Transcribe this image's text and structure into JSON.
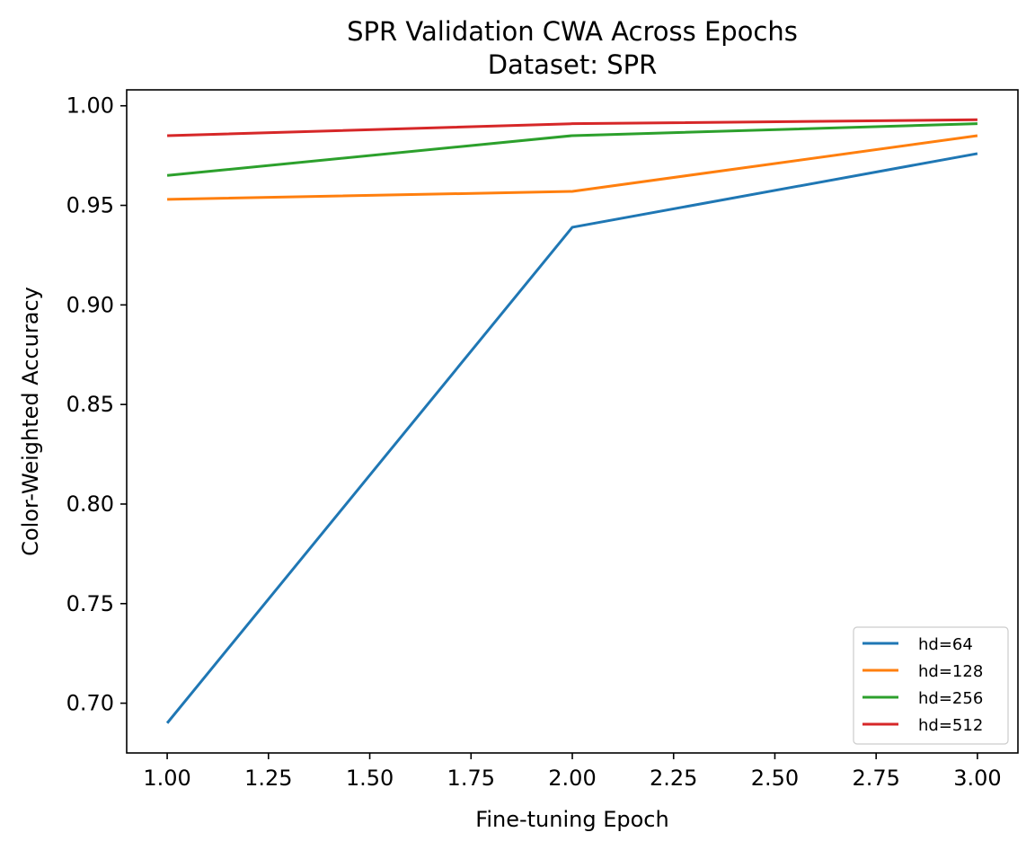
{
  "chart_data": {
    "type": "line",
    "title": "SPR Validation CWA Across Epochs",
    "subtitle": "Dataset: SPR",
    "xlabel": "Fine-tuning Epoch",
    "ylabel": "Color-Weighted Accuracy",
    "x": [
      1,
      2,
      3
    ],
    "xlim": [
      0.9,
      3.1
    ],
    "ylim": [
      0.675,
      1.008
    ],
    "xticks": [
      1.0,
      1.25,
      1.5,
      1.75,
      2.0,
      2.25,
      2.5,
      2.75,
      3.0
    ],
    "xtick_labels": [
      "1.00",
      "1.25",
      "1.50",
      "1.75",
      "2.00",
      "2.25",
      "2.50",
      "2.75",
      "3.00"
    ],
    "yticks": [
      0.7,
      0.75,
      0.8,
      0.85,
      0.9,
      0.95,
      1.0
    ],
    "ytick_labels": [
      "0.70",
      "0.75",
      "0.80",
      "0.85",
      "0.90",
      "0.95",
      "1.00"
    ],
    "grid": false,
    "legend_position": "lower-right",
    "series": [
      {
        "name": "hd=64",
        "color": "#1f77b4",
        "values": [
          0.69,
          0.939,
          0.976
        ]
      },
      {
        "name": "hd=128",
        "color": "#ff7f0e",
        "values": [
          0.953,
          0.957,
          0.985
        ]
      },
      {
        "name": "hd=256",
        "color": "#2ca02c",
        "values": [
          0.965,
          0.985,
          0.991
        ]
      },
      {
        "name": "hd=512",
        "color": "#d62728",
        "values": [
          0.985,
          0.991,
          0.993
        ]
      }
    ]
  }
}
